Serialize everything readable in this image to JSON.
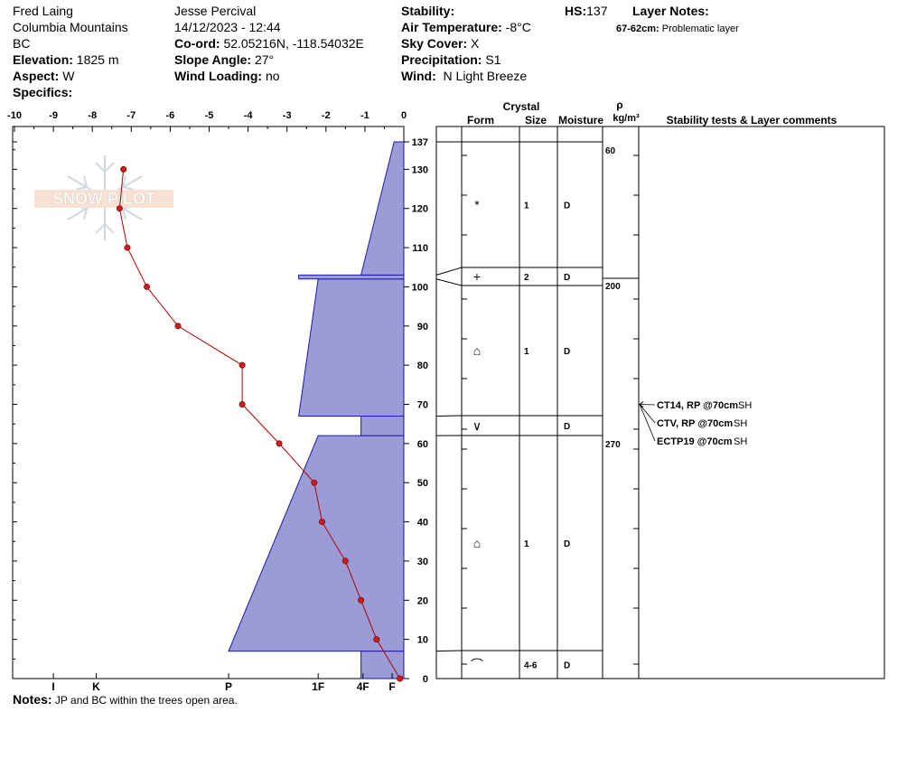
{
  "header": {
    "observer": "Fred Laing",
    "range": "Columbia Mountains",
    "region": "BC",
    "elevation_label": "Elevation:",
    "elevation": "1825 m",
    "aspect_label": "Aspect:",
    "aspect": "W",
    "specifics_label": "Specifics:",
    "observer2": "Jesse Percival",
    "datetime": "14/12/2023 - 12:44",
    "coord_label": "Co-ord:",
    "coord": "52.05216N, -118.54032E",
    "slope_label": "Slope Angle:",
    "slope": "27°",
    "wind_loading_label": "Wind Loading:",
    "wind_loading": "no",
    "stability_label": "Stability:",
    "air_temp_label": "Air Temperature:",
    "air_temp": "-8°C",
    "sky_label": "Sky Cover:",
    "sky": "X",
    "precip_label": "Precipitation:",
    "precip": "S1",
    "wind_label": "Wind:",
    "wind": "N Light Breeze",
    "hs_label": "HS:",
    "hs": "137",
    "layer_notes_label": "Layer Notes:",
    "layer_note_range": "67-62cm:",
    "layer_note_text": "Problematic layer"
  },
  "logo_text": "SNOW PILOT",
  "notes": {
    "label": "Notes:",
    "text": "JP and BC within the trees open area."
  },
  "columns": {
    "crystal": "Crystal",
    "form": "Form",
    "size": "Size",
    "moisture": "Moisture",
    "rho": "ρ",
    "density_unit": "kg/m³",
    "stability": "Stability tests & Layer comments"
  },
  "colors": {
    "hardness_fill": "#9b9bd6",
    "hardness_edge": "#1a1ab0",
    "temp_line": "#b30000"
  },
  "chart_data": {
    "type": "snow_profile",
    "temperature_axis": {
      "ticks": [
        -10,
        -9,
        -8,
        -7,
        -6,
        -5,
        -4,
        -3,
        -2,
        -1,
        0
      ],
      "range": [
        -10,
        0
      ]
    },
    "height_axis": {
      "ticks": [
        0,
        10,
        20,
        30,
        40,
        50,
        60,
        70,
        80,
        90,
        100,
        110,
        120,
        130,
        137
      ],
      "range": [
        0,
        137
      ]
    },
    "hardness_axis": {
      "labels": [
        "I",
        "K",
        "P",
        "1F",
        "4F",
        "F"
      ],
      "positions": [
        -9.0,
        -7.9,
        -4.5,
        -2.2,
        -1.05,
        -0.3
      ]
    },
    "temperature_profile": [
      {
        "h": 0,
        "t": -0.1
      },
      {
        "h": 10,
        "t": -0.7
      },
      {
        "h": 20,
        "t": -1.1
      },
      {
        "h": 30,
        "t": -1.5
      },
      {
        "h": 40,
        "t": -2.1
      },
      {
        "h": 50,
        "t": -2.3
      },
      {
        "h": 60,
        "t": -3.2
      },
      {
        "h": 70,
        "t": -4.15
      },
      {
        "h": 80,
        "t": -4.15
      },
      {
        "h": 90,
        "t": -5.8
      },
      {
        "h": 100,
        "t": -6.6
      },
      {
        "h": 110,
        "t": -7.1
      },
      {
        "h": 120,
        "t": -7.3
      },
      {
        "h": 130,
        "t": -7.2
      }
    ],
    "hardness_layers": [
      {
        "bottom": 0,
        "top": 7,
        "hard_bottom": -1.1,
        "hard_top": -1.1
      },
      {
        "bottom": 7,
        "top": 62,
        "hard_bottom": -4.5,
        "hard_top": -2.2
      },
      {
        "bottom": 62,
        "top": 67,
        "hard_bottom": -1.1,
        "hard_top": -1.1
      },
      {
        "bottom": 67,
        "top": 102,
        "hard_bottom": -2.7,
        "hard_top": -2.2
      },
      {
        "bottom": 102,
        "top": 103,
        "hard_bottom": -2.7,
        "hard_top": -2.7
      },
      {
        "bottom": 103,
        "top": 137,
        "hard_bottom": -1.1,
        "hard_top": -0.25
      }
    ],
    "layers": [
      {
        "bottom": 0,
        "top": 7,
        "form": "⌒",
        "size": "4-6",
        "moisture": "D"
      },
      {
        "bottom": 7,
        "top": 62,
        "form": "⌂",
        "size": "1",
        "moisture": "D"
      },
      {
        "bottom": 62,
        "top": 67,
        "form": "∨",
        "size": "",
        "moisture": "D"
      },
      {
        "bottom": 67,
        "top": 100,
        "form": "⌂",
        "size": "1",
        "moisture": "D"
      },
      {
        "bottom": 100,
        "top": 105,
        "form": "+",
        "size": "2",
        "moisture": "D"
      },
      {
        "bottom": 105,
        "top": 137,
        "form": "*",
        "size": "1",
        "moisture": "D"
      }
    ],
    "densities": [
      {
        "h": 137,
        "value": "60"
      },
      {
        "h": 101,
        "value": "200"
      },
      {
        "h": 62,
        "value": "270"
      }
    ],
    "stability_tests": [
      {
        "h": 70,
        "test": "CT14, RP @70cm",
        "fracture": "SH"
      },
      {
        "h": 70,
        "test": "CTV, RP @70cm",
        "fracture": "SH"
      },
      {
        "h": 70,
        "test": "ECTP19 @70cm",
        "fracture": "SH"
      }
    ]
  }
}
